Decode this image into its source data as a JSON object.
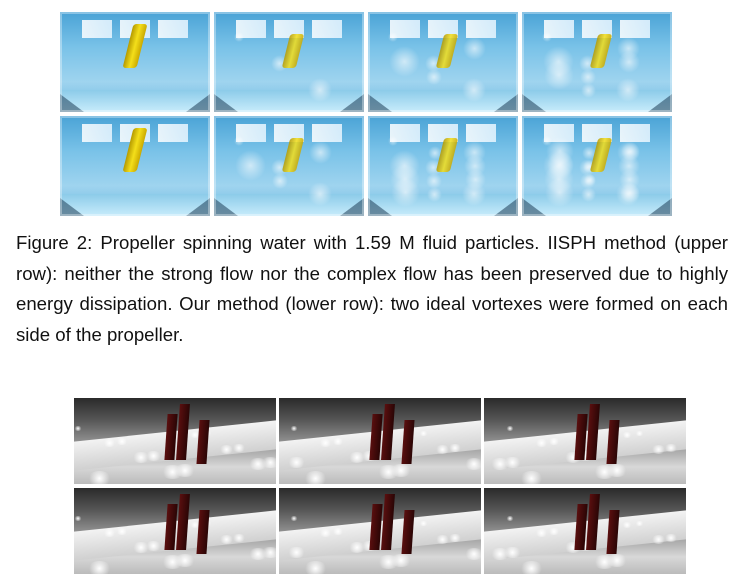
{
  "caption": {
    "label": "Figure 2:",
    "text": "Propeller spinning water with 1.59 M fluid particles. IISPH method (upper row): neither the strong flow nor the complex flow has been preserved due to highly energy dissipation. Our method (lower row): two ideal vortexes were formed on each side of the propeller."
  },
  "colors": {
    "water": "#79c2e8",
    "propeller": "#f4df1a",
    "pillar": "#5a0f0f",
    "fluid_surface": "#e0e0e0"
  }
}
